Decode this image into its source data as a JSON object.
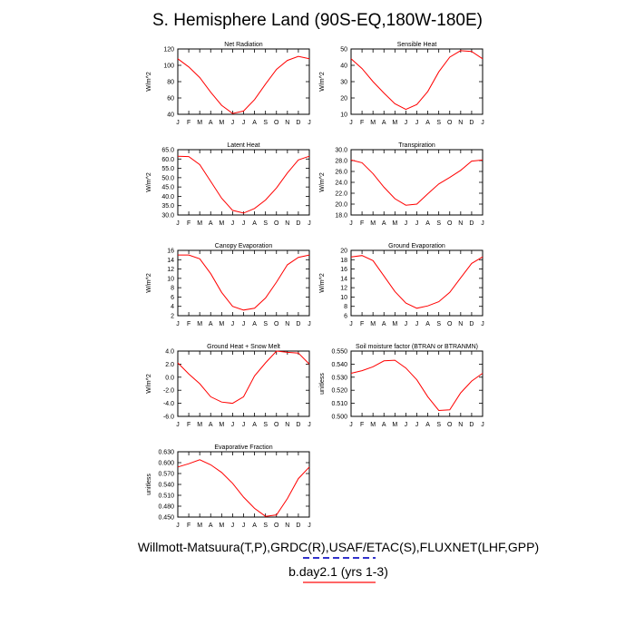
{
  "title": "S. Hemisphere Land (90S-EQ,180W-180E)",
  "footer": {
    "sources": "Willmott-Matsuura(T,P),GRDC(R),USAF/ETAC(S),FLUXNET(LHF,GPP)",
    "case": "b.day2.1 (yrs 1-3)"
  },
  "colors": {
    "line": "#ff0000",
    "obs_legend": "#3333cc",
    "case_legend": "#ff6666"
  },
  "chart_data": [
    {
      "type": "line",
      "title": "Net Radiation",
      "ylabel": "W/m^2",
      "categories": [
        "J",
        "F",
        "M",
        "A",
        "M",
        "J",
        "J",
        "A",
        "S",
        "O",
        "N",
        "D",
        "J"
      ],
      "ylim": [
        40,
        120
      ],
      "yticks": [
        "40",
        "60",
        "80",
        "100",
        "120"
      ],
      "values": [
        108,
        98,
        85,
        67,
        51,
        41,
        44,
        58,
        77,
        95,
        106,
        111,
        108
      ]
    },
    {
      "type": "line",
      "title": "Sensible Heat",
      "ylabel": "W/m^2",
      "categories": [
        "J",
        "F",
        "M",
        "A",
        "M",
        "J",
        "J",
        "A",
        "S",
        "O",
        "N",
        "D",
        "J"
      ],
      "ylim": [
        10,
        50
      ],
      "yticks": [
        "10",
        "20",
        "30",
        "40",
        "50"
      ],
      "values": [
        44,
        38,
        30,
        23,
        16.5,
        13,
        16,
        24,
        36,
        45,
        49,
        48.5,
        44
      ]
    },
    {
      "type": "line",
      "title": "Latent Heat",
      "ylabel": "W/m^2",
      "categories": [
        "J",
        "F",
        "M",
        "A",
        "M",
        "J",
        "J",
        "A",
        "S",
        "O",
        "N",
        "D",
        "J"
      ],
      "ylim": [
        30,
        65
      ],
      "yticks": [
        "30.0",
        "35.0",
        "40.0",
        "45.0",
        "50.0",
        "55.0",
        "60.0",
        "65.0"
      ],
      "values": [
        61.5,
        61.3,
        57,
        48,
        39,
        32.5,
        31,
        33.5,
        38,
        44.5,
        52.5,
        59.5,
        61.5
      ]
    },
    {
      "type": "line",
      "title": "Transpiration",
      "ylabel": "W/m^2",
      "categories": [
        "J",
        "F",
        "M",
        "A",
        "M",
        "J",
        "J",
        "A",
        "S",
        "O",
        "N",
        "D",
        "J"
      ],
      "ylim": [
        18,
        30
      ],
      "yticks": [
        "18.0",
        "20.0",
        "22.0",
        "24.0",
        "26.0",
        "28.0",
        "30.0"
      ],
      "values": [
        28.1,
        27.6,
        25.6,
        23.1,
        21.0,
        19.8,
        20.0,
        21.9,
        23.7,
        24.9,
        26.2,
        27.9,
        28.1
      ]
    },
    {
      "type": "line",
      "title": "Canopy Evaporation",
      "ylabel": "W/m^2",
      "categories": [
        "J",
        "F",
        "M",
        "A",
        "M",
        "J",
        "J",
        "A",
        "S",
        "O",
        "N",
        "D",
        "J"
      ],
      "ylim": [
        2,
        16
      ],
      "yticks": [
        "2",
        "4",
        "6",
        "8",
        "10",
        "12",
        "14",
        "16"
      ],
      "values": [
        15,
        15,
        14.2,
        11,
        7,
        4,
        3.2,
        3.6,
        5.8,
        9.2,
        12.9,
        14.5,
        15
      ]
    },
    {
      "type": "line",
      "title": "Ground Evaporation",
      "ylabel": "W/m^2",
      "categories": [
        "J",
        "F",
        "M",
        "A",
        "M",
        "J",
        "J",
        "A",
        "S",
        "O",
        "N",
        "D",
        "J"
      ],
      "ylim": [
        6,
        20
      ],
      "yticks": [
        "6",
        "8",
        "10",
        "12",
        "14",
        "16",
        "18",
        "20"
      ],
      "values": [
        18.6,
        18.9,
        17.8,
        14.5,
        11.2,
        8.7,
        7.6,
        8.1,
        9.0,
        11.0,
        14.1,
        17.2,
        18.6
      ]
    },
    {
      "type": "line",
      "title": "Ground Heat + Snow Melt",
      "ylabel": "W/m^2",
      "categories": [
        "J",
        "F",
        "M",
        "A",
        "M",
        "J",
        "J",
        "A",
        "S",
        "O",
        "N",
        "D",
        "J"
      ],
      "ylim": [
        -6,
        4
      ],
      "yticks": [
        "-6.0",
        "-4.0",
        "-2.0",
        "0.0",
        "2.0",
        "4.0"
      ],
      "values": [
        2.2,
        0.5,
        -1,
        -3,
        -3.8,
        -4,
        -3,
        0.2,
        2.2,
        4,
        3.8,
        3.7,
        2
      ]
    },
    {
      "type": "line",
      "title": "Soil moisture factor (BTRAN or BTRANMN)",
      "ylabel": "unitless",
      "categories": [
        "J",
        "F",
        "M",
        "A",
        "M",
        "J",
        "J",
        "A",
        "S",
        "O",
        "N",
        "D",
        "J"
      ],
      "ylim": [
        0.5,
        0.55
      ],
      "yticks": [
        "0.500",
        "0.510",
        "0.520",
        "0.530",
        "0.540",
        "0.550"
      ],
      "values": [
        0.533,
        0.535,
        0.538,
        0.5425,
        0.543,
        0.537,
        0.528,
        0.515,
        0.5045,
        0.505,
        0.518,
        0.527,
        0.533
      ]
    },
    {
      "type": "line",
      "title": "Evaporative Fraction",
      "ylabel": "unitless",
      "categories": [
        "J",
        "F",
        "M",
        "A",
        "M",
        "J",
        "J",
        "A",
        "S",
        "O",
        "N",
        "D",
        "J"
      ],
      "ylim": [
        0.45,
        0.63
      ],
      "yticks": [
        "0.450",
        "0.480",
        "0.510",
        "0.540",
        "0.570",
        "0.600",
        "0.630"
      ],
      "values": [
        0.588,
        0.597,
        0.608,
        0.594,
        0.573,
        0.543,
        0.505,
        0.474,
        0.452,
        0.456,
        0.501,
        0.556,
        0.588
      ]
    }
  ]
}
